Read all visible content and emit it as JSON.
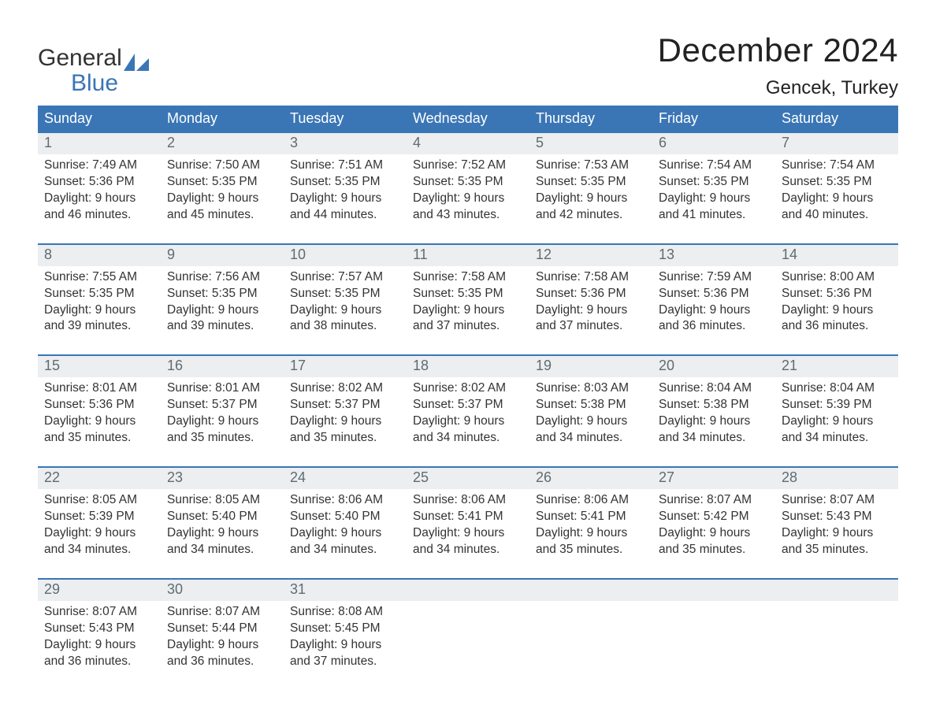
{
  "logo": {
    "word1": "General",
    "word2": "Blue",
    "sail_color": "#3a76b5"
  },
  "title": "December 2024",
  "location": "Gencek, Turkey",
  "colors": {
    "header_bg": "#3a76b5",
    "header_text": "#ffffff",
    "daynum_bg": "#eceef0",
    "daynum_text": "#5f6c74",
    "body_text": "#333333",
    "rule": "#3a76b5"
  },
  "weekdays": [
    "Sunday",
    "Monday",
    "Tuesday",
    "Wednesday",
    "Thursday",
    "Friday",
    "Saturday"
  ],
  "weeks": [
    [
      {
        "n": "1",
        "sunrise": "7:49 AM",
        "sunset": "5:36 PM",
        "dl1": "Daylight: 9 hours",
        "dl2": "and 46 minutes."
      },
      {
        "n": "2",
        "sunrise": "7:50 AM",
        "sunset": "5:35 PM",
        "dl1": "Daylight: 9 hours",
        "dl2": "and 45 minutes."
      },
      {
        "n": "3",
        "sunrise": "7:51 AM",
        "sunset": "5:35 PM",
        "dl1": "Daylight: 9 hours",
        "dl2": "and 44 minutes."
      },
      {
        "n": "4",
        "sunrise": "7:52 AM",
        "sunset": "5:35 PM",
        "dl1": "Daylight: 9 hours",
        "dl2": "and 43 minutes."
      },
      {
        "n": "5",
        "sunrise": "7:53 AM",
        "sunset": "5:35 PM",
        "dl1": "Daylight: 9 hours",
        "dl2": "and 42 minutes."
      },
      {
        "n": "6",
        "sunrise": "7:54 AM",
        "sunset": "5:35 PM",
        "dl1": "Daylight: 9 hours",
        "dl2": "and 41 minutes."
      },
      {
        "n": "7",
        "sunrise": "7:54 AM",
        "sunset": "5:35 PM",
        "dl1": "Daylight: 9 hours",
        "dl2": "and 40 minutes."
      }
    ],
    [
      {
        "n": "8",
        "sunrise": "7:55 AM",
        "sunset": "5:35 PM",
        "dl1": "Daylight: 9 hours",
        "dl2": "and 39 minutes."
      },
      {
        "n": "9",
        "sunrise": "7:56 AM",
        "sunset": "5:35 PM",
        "dl1": "Daylight: 9 hours",
        "dl2": "and 39 minutes."
      },
      {
        "n": "10",
        "sunrise": "7:57 AM",
        "sunset": "5:35 PM",
        "dl1": "Daylight: 9 hours",
        "dl2": "and 38 minutes."
      },
      {
        "n": "11",
        "sunrise": "7:58 AM",
        "sunset": "5:35 PM",
        "dl1": "Daylight: 9 hours",
        "dl2": "and 37 minutes."
      },
      {
        "n": "12",
        "sunrise": "7:58 AM",
        "sunset": "5:36 PM",
        "dl1": "Daylight: 9 hours",
        "dl2": "and 37 minutes."
      },
      {
        "n": "13",
        "sunrise": "7:59 AM",
        "sunset": "5:36 PM",
        "dl1": "Daylight: 9 hours",
        "dl2": "and 36 minutes."
      },
      {
        "n": "14",
        "sunrise": "8:00 AM",
        "sunset": "5:36 PM",
        "dl1": "Daylight: 9 hours",
        "dl2": "and 36 minutes."
      }
    ],
    [
      {
        "n": "15",
        "sunrise": "8:01 AM",
        "sunset": "5:36 PM",
        "dl1": "Daylight: 9 hours",
        "dl2": "and 35 minutes."
      },
      {
        "n": "16",
        "sunrise": "8:01 AM",
        "sunset": "5:37 PM",
        "dl1": "Daylight: 9 hours",
        "dl2": "and 35 minutes."
      },
      {
        "n": "17",
        "sunrise": "8:02 AM",
        "sunset": "5:37 PM",
        "dl1": "Daylight: 9 hours",
        "dl2": "and 35 minutes."
      },
      {
        "n": "18",
        "sunrise": "8:02 AM",
        "sunset": "5:37 PM",
        "dl1": "Daylight: 9 hours",
        "dl2": "and 34 minutes."
      },
      {
        "n": "19",
        "sunrise": "8:03 AM",
        "sunset": "5:38 PM",
        "dl1": "Daylight: 9 hours",
        "dl2": "and 34 minutes."
      },
      {
        "n": "20",
        "sunrise": "8:04 AM",
        "sunset": "5:38 PM",
        "dl1": "Daylight: 9 hours",
        "dl2": "and 34 minutes."
      },
      {
        "n": "21",
        "sunrise": "8:04 AM",
        "sunset": "5:39 PM",
        "dl1": "Daylight: 9 hours",
        "dl2": "and 34 minutes."
      }
    ],
    [
      {
        "n": "22",
        "sunrise": "8:05 AM",
        "sunset": "5:39 PM",
        "dl1": "Daylight: 9 hours",
        "dl2": "and 34 minutes."
      },
      {
        "n": "23",
        "sunrise": "8:05 AM",
        "sunset": "5:40 PM",
        "dl1": "Daylight: 9 hours",
        "dl2": "and 34 minutes."
      },
      {
        "n": "24",
        "sunrise": "8:06 AM",
        "sunset": "5:40 PM",
        "dl1": "Daylight: 9 hours",
        "dl2": "and 34 minutes."
      },
      {
        "n": "25",
        "sunrise": "8:06 AM",
        "sunset": "5:41 PM",
        "dl1": "Daylight: 9 hours",
        "dl2": "and 34 minutes."
      },
      {
        "n": "26",
        "sunrise": "8:06 AM",
        "sunset": "5:41 PM",
        "dl1": "Daylight: 9 hours",
        "dl2": "and 35 minutes."
      },
      {
        "n": "27",
        "sunrise": "8:07 AM",
        "sunset": "5:42 PM",
        "dl1": "Daylight: 9 hours",
        "dl2": "and 35 minutes."
      },
      {
        "n": "28",
        "sunrise": "8:07 AM",
        "sunset": "5:43 PM",
        "dl1": "Daylight: 9 hours",
        "dl2": "and 35 minutes."
      }
    ],
    [
      {
        "n": "29",
        "sunrise": "8:07 AM",
        "sunset": "5:43 PM",
        "dl1": "Daylight: 9 hours",
        "dl2": "and 36 minutes."
      },
      {
        "n": "30",
        "sunrise": "8:07 AM",
        "sunset": "5:44 PM",
        "dl1": "Daylight: 9 hours",
        "dl2": "and 36 minutes."
      },
      {
        "n": "31",
        "sunrise": "8:08 AM",
        "sunset": "5:45 PM",
        "dl1": "Daylight: 9 hours",
        "dl2": "and 37 minutes."
      },
      null,
      null,
      null,
      null
    ]
  ],
  "labels": {
    "sunrise_prefix": "Sunrise: ",
    "sunset_prefix": "Sunset: "
  }
}
